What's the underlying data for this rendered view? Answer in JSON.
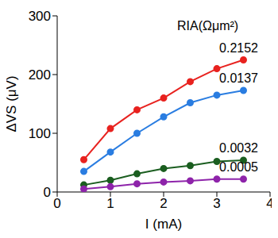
{
  "chart_data": {
    "type": "line",
    "x_label": "I (mA)",
    "y_label": "ΔVS (μV)",
    "annotations": [
      "RIA(Ωμm²)"
    ],
    "x": [
      0.5,
      1,
      1.5,
      2,
      2.5,
      3,
      3.5
    ],
    "series": [
      {
        "name": "0.2152",
        "color": "#e8221f",
        "values": [
          55,
          108,
          140,
          160,
          188,
          210,
          225
        ]
      },
      {
        "name": "0.0137",
        "color": "#2a7de1",
        "values": [
          35,
          68,
          100,
          128,
          152,
          165,
          173
        ]
      },
      {
        "name": "0.0032",
        "color": "#1b5e20",
        "values": [
          12,
          20,
          31,
          40,
          45,
          52,
          54
        ]
      },
      {
        "name": "0.0005",
        "color": "#8e24aa",
        "values": [
          5,
          9,
          14,
          17,
          19,
          22,
          22
        ]
      }
    ],
    "xlim": [
      0,
      4
    ],
    "xticks": [
      0,
      1,
      2,
      3,
      4
    ],
    "ylim": [
      0,
      300
    ],
    "yticks": [
      0,
      100,
      200,
      300
    ],
    "grid": false,
    "marker": "circle",
    "line_style": "solid",
    "data_labels": false
  }
}
